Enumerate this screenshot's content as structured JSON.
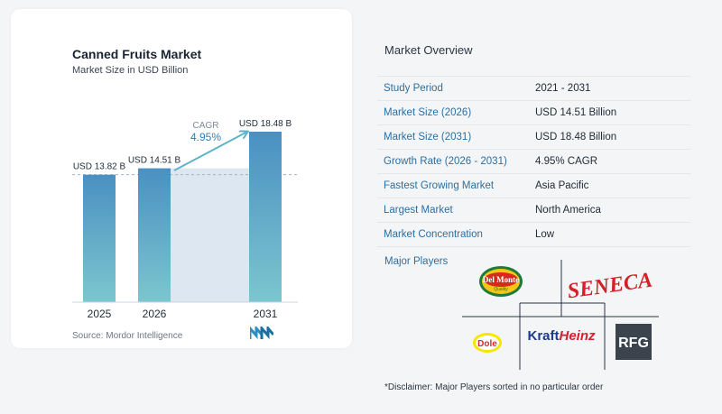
{
  "chart": {
    "title": "Canned Fruits Market",
    "subtitle": "Market Size in USD Billion",
    "source": "Source:  Mordor Intelligence"
  },
  "chart_data": {
    "type": "bar",
    "categories": [
      "2025",
      "2026",
      "2031"
    ],
    "values": [
      13.82,
      14.51,
      18.48
    ],
    "data_labels": [
      "USD 13.82 B",
      "USD 14.51 B",
      "USD 18.48 B"
    ],
    "cagr_label": "CAGR",
    "cagr_value": "4.95%",
    "ylim": [
      0,
      18.48
    ],
    "grid": false,
    "colors": {
      "bar_top": "#4a90c2",
      "bar_bottom": "#7cc6cf",
      "shade": "#dde7f1",
      "arrow": "#5fb4c9",
      "cagr": "#2a7fc4"
    }
  },
  "overview": {
    "title": "Market Overview",
    "rows": [
      {
        "label": "Study Period",
        "value": "2021 - 2031"
      },
      {
        "label": "Market Size (2026)",
        "value": "USD 14.51 Billion"
      },
      {
        "label": "Market Size (2031)",
        "value": "USD 18.48 Billion"
      },
      {
        "label": "Growth Rate (2026 - 2031)",
        "value": "4.95% CAGR"
      },
      {
        "label": "Fastest Growing Market",
        "value": "Asia Pacific"
      },
      {
        "label": "Largest Market",
        "value": "North America"
      },
      {
        "label": "Market Concentration",
        "value": "Low"
      }
    ]
  },
  "players": {
    "label": "Major Players",
    "logos": [
      {
        "name": "Del Monte",
        "line1": "Del Monte",
        "line2": "Quality"
      },
      {
        "name": "Seneca",
        "text": "SENECA"
      },
      {
        "name": "Dole",
        "text": "Dole"
      },
      {
        "name": "Kraft Heinz",
        "part1": "Kraft",
        "part2": "Heinz"
      },
      {
        "name": "RFG",
        "text": "RFG"
      }
    ]
  },
  "disclaimer": "*Disclaimer: Major Players sorted in no particular order"
}
